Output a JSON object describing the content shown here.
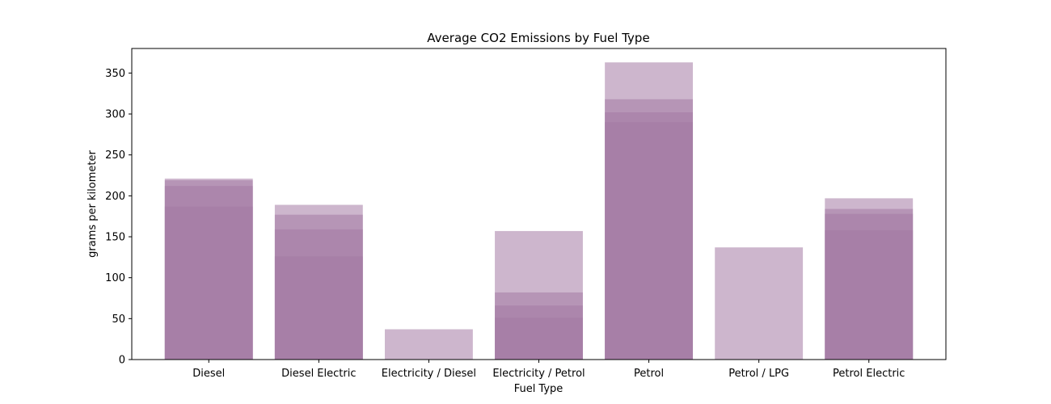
{
  "chart_data": {
    "type": "bar",
    "title": "Average CO2 Emissions by Fuel Type",
    "xlabel": "Fuel Type",
    "ylabel": "grams per kilometer",
    "ylim": [
      0,
      380
    ],
    "yticks": [
      0,
      50,
      100,
      150,
      200,
      250,
      300,
      350
    ],
    "grid": false,
    "bar_color": "#a47aa4",
    "categories": [
      "Diesel",
      "Diesel Electric",
      "Electricity / Diesel",
      "Electricity / Petrol",
      "Petrol",
      "Petrol / LPG",
      "Petrol Electric"
    ],
    "layers": [
      [
        221,
        189,
        37,
        157,
        363,
        137,
        197
      ],
      [
        219,
        177,
        null,
        82,
        318,
        null,
        184
      ],
      [
        212,
        159,
        null,
        66,
        302,
        null,
        178
      ],
      [
        187,
        126,
        null,
        51,
        290,
        null,
        158
      ]
    ]
  }
}
